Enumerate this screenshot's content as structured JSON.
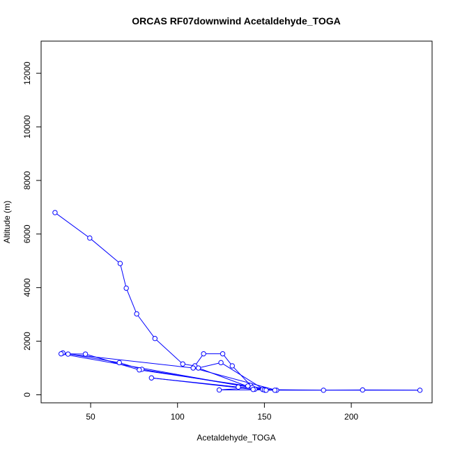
{
  "chart_data": {
    "type": "line",
    "title": "ORCAS RF07downwind Acetaldehyde_TOGA",
    "xlabel": "Acetaldehyde_TOGA",
    "ylabel": "Altitude (m)",
    "xlim": [
      21.5,
      246.5
    ],
    "ylim": [
      -300,
      13200
    ],
    "x_ticks": [
      50,
      100,
      150,
      200
    ],
    "y_ticks": [
      0,
      2000,
      4000,
      6000,
      8000,
      10000,
      12000
    ],
    "grid": false,
    "marker": "open-circle",
    "series": [
      {
        "color": "#0000ff",
        "x": [
          29.5,
          49.5,
          67,
          70.5,
          76.5,
          87,
          103,
          110,
          115,
          126,
          131.5,
          142,
          149,
          150.5,
          125,
          112,
          144.5,
          157,
          109,
          37,
          34,
          66.5,
          79.5,
          143,
          124,
          150,
          33,
          47,
          78,
          140.5,
          156,
          135,
          85,
          143.5,
          184,
          206.5,
          239.5,
          151
        ],
        "y": [
          6800,
          5850,
          4900,
          3980,
          3020,
          2100,
          1150,
          1080,
          1530,
          1530,
          1080,
          350,
          200,
          170,
          1200,
          1000,
          210,
          170,
          1000,
          1520,
          1560,
          1200,
          950,
          270,
          180,
          180,
          1530,
          1520,
          930,
          330,
          170,
          290,
          630,
          200,
          170,
          180,
          170,
          170
        ]
      }
    ]
  }
}
